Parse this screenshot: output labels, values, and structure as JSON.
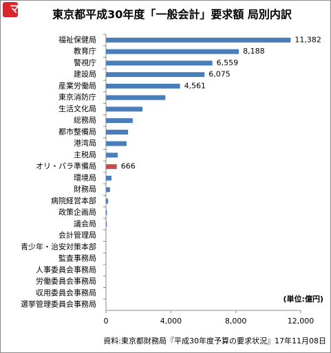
{
  "logo": "マ!",
  "chart_data": {
    "type": "hbar",
    "title": "東京都平成30年度「一般会計」要求額 局別内訳",
    "unit_note": "(単位:億円)",
    "source": "資料:東京都財務局『平成30年度予算の要求状況』17年11月08日",
    "categories": [
      "福祉保健局",
      "教育庁",
      "警視庁",
      "建設局",
      "産業労働局",
      "東京消防庁",
      "生活文化局",
      "総務局",
      "都市整備局",
      "港湾局",
      "主税局",
      "オリ・パラ準備局",
      "環境局",
      "財務局",
      "病院経営本部",
      "政策企画局",
      "議会局",
      "会計管理局",
      "青少年・治安対策本部",
      "監査事務局",
      "人事委員会事務局",
      "労働委員会事務局",
      "収用委員会事務局",
      "選挙管理委員会事務局"
    ],
    "values": [
      11382,
      8188,
      6559,
      6075,
      4561,
      3660,
      2250,
      1650,
      1360,
      1270,
      720,
      666,
      340,
      250,
      130,
      60,
      50,
      20,
      10,
      10,
      10,
      10,
      5,
      10
    ],
    "value_labels": [
      "11,382",
      "8,188",
      "6,559",
      "6,075",
      "4,561",
      null,
      null,
      null,
      null,
      null,
      null,
      "666",
      null,
      null,
      null,
      null,
      null,
      null,
      null,
      null,
      null,
      null,
      null,
      null
    ],
    "colors": [
      "#4a7ebb",
      "#4a7ebb",
      "#4a7ebb",
      "#4a7ebb",
      "#4a7ebb",
      "#4a7ebb",
      "#4a7ebb",
      "#4a7ebb",
      "#4a7ebb",
      "#4a7ebb",
      "#4a7ebb",
      "#c0504d",
      "#4a7ebb",
      "#4a7ebb",
      "#4a7ebb",
      "#4a7ebb",
      "#4a7ebb",
      "#4a7ebb",
      "#4a7ebb",
      "#4a7ebb",
      "#4a7ebb",
      "#4a7ebb",
      "#4a7ebb",
      "#4a7ebb"
    ],
    "xlim": [
      0,
      12000
    ],
    "xticks": [
      0,
      {
        "value": 4000,
        "label": "4,000"
      },
      {
        "value": 8000,
        "label": "8,000"
      },
      {
        "value": 12000,
        "label": "12,000"
      }
    ],
    "grid": false
  }
}
